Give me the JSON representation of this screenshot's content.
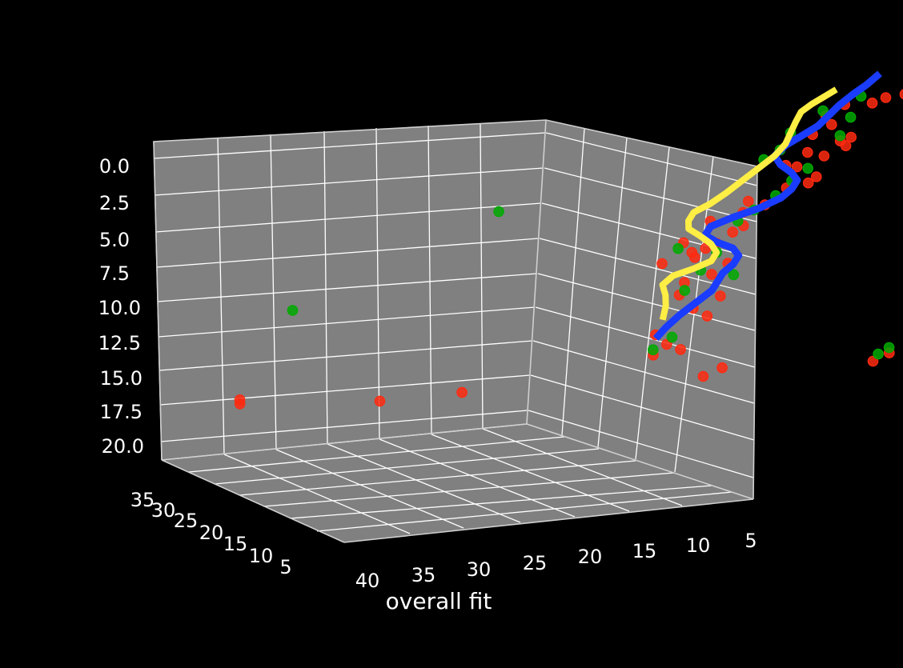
{
  "chart_data": {
    "type": "scatter",
    "projection": "3d",
    "background": "#000000",
    "pane_color": "#808080",
    "grid": true,
    "xlabel": "overall fit",
    "ylabel": "",
    "zlabel": "",
    "x_ticks": [
      "40",
      "35",
      "30",
      "25",
      "20",
      "15",
      "10",
      "5"
    ],
    "y_ticks": [
      "35",
      "30",
      "25",
      "20",
      "15",
      "10",
      "5"
    ],
    "z_ticks": [
      "0.0",
      "2.5",
      "5.0",
      "7.5",
      "10.0",
      "12.5",
      "15.0",
      "17.5",
      "20.0"
    ],
    "series": [
      {
        "color": "#ff2a10",
        "marker": "circle",
        "points": [
          [
            37.1,
            3.6
          ],
          [
            37.1,
            3.9
          ],
          [
            32.0,
            2.7
          ],
          [
            29.0,
            2.7
          ],
          [
            20.2,
            2.0
          ],
          [
            19.5,
            2.5
          ],
          [
            14.0,
            1.8
          ],
          [
            13.4,
            2.3
          ],
          [
            22.0,
            4.0
          ],
          [
            21.5,
            4.7
          ],
          [
            21.0,
            4.2
          ],
          [
            21.9,
            5.5
          ],
          [
            20.0,
            6.5
          ],
          [
            20.5,
            7.2
          ],
          [
            19.5,
            7.9
          ],
          [
            21.0,
            8.3
          ],
          [
            20.8,
            9.2
          ],
          [
            19.8,
            9.6
          ],
          [
            19.2,
            10.3
          ],
          [
            21.6,
            10.8
          ],
          [
            20.4,
            11.0
          ],
          [
            20.0,
            11.6
          ],
          [
            20.8,
            12.2
          ],
          [
            19.0,
            12.6
          ],
          [
            18.6,
            13.0
          ],
          [
            19.8,
            13.6
          ],
          [
            18.6,
            14.0
          ],
          [
            17.8,
            14.4
          ],
          [
            18.4,
            14.8
          ],
          [
            17.0,
            15.5
          ],
          [
            16.2,
            15.7
          ],
          [
            15.9,
            16.1
          ],
          [
            16.6,
            17.0
          ],
          [
            15.6,
            17.6
          ],
          [
            16.2,
            18.0
          ],
          [
            14.8,
            18.2
          ],
          [
            14.6,
            18.8
          ],
          [
            16.0,
            19.3
          ],
          [
            15.3,
            19.9
          ],
          [
            15.5,
            20.6
          ],
          [
            14.8,
            21.3
          ],
          [
            13.8,
            21.2
          ],
          [
            13.3,
            21.5
          ],
          [
            12.6,
            21.6
          ],
          [
            17.0,
            17.2
          ],
          [
            15.0,
            18.6
          ],
          [
            20.5,
            11.4
          ],
          [
            19.6,
            11.9
          ]
        ]
      },
      {
        "color": "#00aa00",
        "marker": "circle",
        "points": [
          [
            35.1,
            10.2
          ],
          [
            27.5,
            16.0
          ],
          [
            22.0,
            4.4
          ],
          [
            21.3,
            5.2
          ],
          [
            20.8,
            8.6
          ],
          [
            20.2,
            10.0
          ],
          [
            19.6,
            11.2
          ],
          [
            21.0,
            11.8
          ],
          [
            18.8,
            13.4
          ],
          [
            17.4,
            15.0
          ],
          [
            16.8,
            16.0
          ],
          [
            16.2,
            16.8
          ],
          [
            17.8,
            17.8
          ],
          [
            15.0,
            19.0
          ],
          [
            16.8,
            19.6
          ],
          [
            14.6,
            20.3
          ],
          [
            15.6,
            21.0
          ],
          [
            14.2,
            21.8
          ],
          [
            13.8,
            2.3
          ],
          [
            13.4,
            2.7
          ],
          [
            3.6,
            0.6
          ],
          [
            2.8,
            8.9
          ],
          [
            18.2,
            14.1
          ],
          [
            17.2,
            18.4
          ],
          [
            19.0,
            9.4
          ]
        ]
      }
    ],
    "lines": [
      {
        "color": "#1a3cff",
        "points": [
          [
            21.8,
            5.4
          ],
          [
            21.5,
            6.0
          ],
          [
            21.0,
            6.8
          ],
          [
            20.4,
            7.6
          ],
          [
            19.8,
            8.4
          ],
          [
            19.6,
            9.0
          ],
          [
            19.4,
            9.6
          ],
          [
            19.0,
            10.2
          ],
          [
            18.8,
            10.8
          ],
          [
            19.0,
            11.4
          ],
          [
            19.6,
            12.0
          ],
          [
            20.0,
            12.6
          ],
          [
            19.8,
            13.2
          ],
          [
            19.0,
            13.7
          ],
          [
            18.0,
            14.2
          ],
          [
            17.2,
            14.8
          ],
          [
            16.8,
            15.4
          ],
          [
            16.6,
            16.0
          ],
          [
            16.8,
            16.6
          ],
          [
            17.2,
            17.3
          ],
          [
            17.4,
            18.0
          ],
          [
            17.0,
            18.7
          ],
          [
            16.4,
            19.3
          ],
          [
            15.8,
            19.9
          ],
          [
            15.4,
            20.6
          ],
          [
            15.0,
            21.3
          ],
          [
            14.5,
            22.0
          ],
          [
            14.0,
            22.6
          ],
          [
            13.6,
            23.2
          ]
        ]
      },
      {
        "color": "#ffee44",
        "points": [
          [
            21.6,
            6.8
          ],
          [
            21.5,
            7.6
          ],
          [
            21.5,
            8.4
          ],
          [
            21.6,
            9.2
          ],
          [
            21.2,
            9.8
          ],
          [
            20.4,
            10.2
          ],
          [
            19.8,
            10.6
          ],
          [
            19.6,
            11.2
          ],
          [
            19.8,
            11.9
          ],
          [
            20.2,
            12.6
          ],
          [
            20.6,
            13.2
          ],
          [
            20.6,
            13.8
          ],
          [
            20.4,
            14.4
          ],
          [
            19.8,
            14.9
          ],
          [
            19.2,
            15.6
          ],
          [
            18.6,
            16.4
          ],
          [
            18.0,
            17.2
          ],
          [
            17.4,
            18.0
          ],
          [
            17.0,
            18.8
          ],
          [
            16.8,
            19.6
          ],
          [
            16.6,
            20.4
          ],
          [
            16.4,
            21.1
          ],
          [
            16.0,
            21.6
          ],
          [
            15.6,
            22.0
          ],
          [
            15.2,
            22.4
          ]
        ]
      }
    ]
  }
}
